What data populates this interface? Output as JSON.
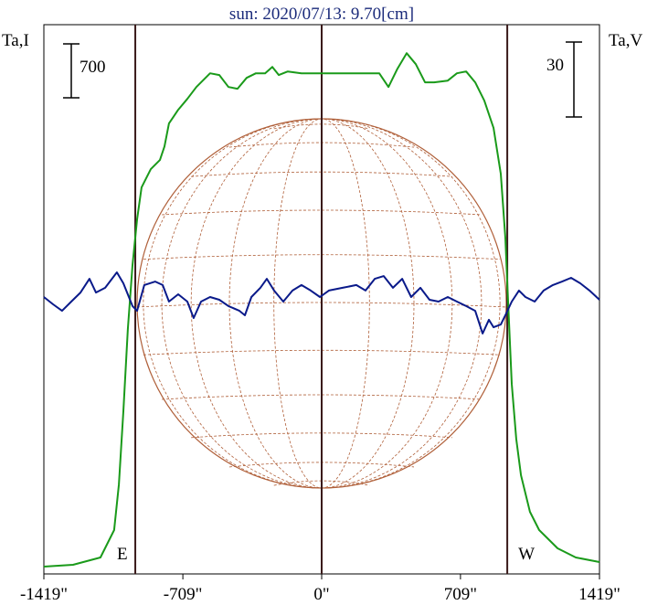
{
  "chart_data": {
    "type": "line",
    "title": "sun: 2020/07/13: 9.70[cm]",
    "ylabel": "Ta,I",
    "y2label": "Ta,V",
    "xlim": [
      -1419,
      1419
    ],
    "xticks": [
      {
        "value": -1419,
        "label": "-1419\""
      },
      {
        "value": -709,
        "label": "-709\""
      },
      {
        "value": 0,
        "label": "0\""
      },
      {
        "value": 709,
        "label": "709\""
      },
      {
        "value": 1419,
        "label": "1419\""
      }
    ],
    "ylim": [
      0,
      7130
    ],
    "y2lim": [
      -110,
      110
    ],
    "vlines": [
      -952,
      0,
      948
    ],
    "limb_labels": [
      "E",
      "W"
    ],
    "scale_bars": [
      {
        "value": 700,
        "axis": "y"
      },
      {
        "value": 30,
        "axis": "y2"
      }
    ],
    "series": [
      {
        "name": "I",
        "color": "#1a9a1a",
        "axis": "y",
        "x": [
          -1419,
          -1270,
          -1130,
          -1060,
          -1036,
          -1013,
          -990,
          -966,
          -943,
          -920,
          -873,
          -826,
          -803,
          -780,
          -733,
          -686,
          -640,
          -570,
          -523,
          -476,
          -430,
          -383,
          -336,
          -289,
          -252,
          -219,
          -173,
          -103,
          -9,
          131,
          294,
          341,
          387,
          434,
          481,
          528,
          574,
          644,
          691,
          738,
          784,
          831,
          878,
          915,
          938,
          952,
          971,
          994,
          1018,
          1064,
          1111,
          1205,
          1298,
          1419
        ],
        "values": [
          95,
          119,
          213,
          569,
          1162,
          2111,
          3179,
          4009,
          4602,
          5017,
          5254,
          5373,
          5550,
          5847,
          6025,
          6167,
          6321,
          6499,
          6476,
          6321,
          6298,
          6440,
          6499,
          6499,
          6582,
          6476,
          6523,
          6499,
          6499,
          6499,
          6499,
          6321,
          6558,
          6760,
          6618,
          6381,
          6381,
          6404,
          6499,
          6523,
          6381,
          6143,
          5788,
          5195,
          4364,
          3534,
          2467,
          1755,
          1281,
          807,
          569,
          332,
          213,
          154
        ]
      },
      {
        "name": "V",
        "color": "#0a1a8a",
        "axis": "y2",
        "x": [
          -1419,
          -1372,
          -1326,
          -1279,
          -1232,
          -1186,
          -1153,
          -1106,
          -1046,
          -1013,
          -966,
          -943,
          -906,
          -850,
          -812,
          -780,
          -733,
          -686,
          -654,
          -616,
          -570,
          -523,
          -476,
          -420,
          -392,
          -359,
          -313,
          -280,
          -243,
          -196,
          -149,
          -103,
          -56,
          -9,
          37,
          107,
          177,
          224,
          271,
          317,
          364,
          411,
          457,
          504,
          551,
          597,
          644,
          691,
          738,
          784,
          822,
          854,
          878,
          915,
          938,
          971,
          1008,
          1041,
          1088,
          1134,
          1181,
          1228,
          1274,
          1321,
          1368,
          1419
        ],
        "values": [
          0.9,
          -2.0,
          -4.6,
          -0.9,
          2.7,
          8.2,
          2.7,
          4.6,
          10.8,
          6.4,
          -2.7,
          -4.6,
          5.7,
          7.1,
          5.7,
          -0.9,
          2.0,
          -0.9,
          -7.5,
          -0.9,
          0.9,
          -0.2,
          -2.7,
          -4.6,
          -6.4,
          0.9,
          4.6,
          8.2,
          3.5,
          -0.9,
          3.5,
          5.7,
          3.5,
          0.9,
          3.5,
          4.6,
          5.7,
          3.5,
          8.2,
          9.3,
          4.6,
          8.2,
          0.9,
          4.6,
          -0.2,
          -0.9,
          0.9,
          -0.9,
          -2.7,
          -4.6,
          -13.7,
          -8.2,
          -11.2,
          -10.1,
          -6.4,
          -0.9,
          3.5,
          0.9,
          -0.9,
          3.5,
          5.7,
          7.1,
          8.6,
          6.4,
          3.5,
          -0.2
        ]
      }
    ]
  }
}
